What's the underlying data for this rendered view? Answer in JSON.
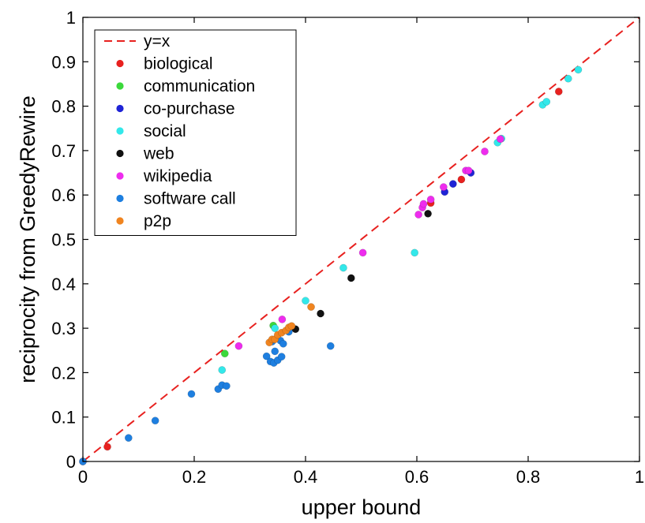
{
  "chart_data": {
    "type": "scatter",
    "title": "",
    "xlabel": "upper bound",
    "ylabel": "reciprocity from GreedyRewire",
    "xlim": [
      0,
      1
    ],
    "ylim": [
      0,
      1
    ],
    "xticks": [
      "0",
      "0.2",
      "0.4",
      "0.6",
      "0.8",
      "1"
    ],
    "yticks": [
      "0",
      "0.1",
      "0.2",
      "0.3",
      "0.4",
      "0.5",
      "0.6",
      "0.7",
      "0.8",
      "0.9",
      "1"
    ],
    "grid": false,
    "legend_position": "top-left",
    "reference_line": {
      "name": "y=x",
      "color": "#e8211f",
      "style": "dashed"
    },
    "series": [
      {
        "name": "biological",
        "color": "#e8211f",
        "points": [
          [
            0.0,
            0.0
          ],
          [
            0.044,
            0.033
          ],
          [
            0.625,
            0.582
          ],
          [
            0.68,
            0.635
          ],
          [
            0.855,
            0.833
          ]
        ]
      },
      {
        "name": "communication",
        "color": "#3bd93b",
        "points": [
          [
            0.255,
            0.243
          ],
          [
            0.342,
            0.306
          ]
        ]
      },
      {
        "name": "co-purchase",
        "color": "#1f24d6",
        "points": [
          [
            0.65,
            0.607
          ],
          [
            0.665,
            0.625
          ],
          [
            0.697,
            0.65
          ]
        ]
      },
      {
        "name": "social",
        "color": "#33e8ea",
        "points": [
          [
            0.25,
            0.206
          ],
          [
            0.345,
            0.3
          ],
          [
            0.4,
            0.362
          ],
          [
            0.468,
            0.436
          ],
          [
            0.596,
            0.47
          ],
          [
            0.745,
            0.718
          ],
          [
            0.752,
            0.727
          ],
          [
            0.826,
            0.803
          ],
          [
            0.833,
            0.81
          ],
          [
            0.872,
            0.862
          ],
          [
            0.89,
            0.882
          ]
        ]
      },
      {
        "name": "web",
        "color": "#111111",
        "points": [
          [
            0.382,
            0.298
          ],
          [
            0.427,
            0.333
          ],
          [
            0.482,
            0.413
          ],
          [
            0.62,
            0.558
          ]
        ]
      },
      {
        "name": "wikipedia",
        "color": "#ee2cee",
        "points": [
          [
            0.28,
            0.26
          ],
          [
            0.358,
            0.32
          ],
          [
            0.503,
            0.47
          ],
          [
            0.603,
            0.556
          ],
          [
            0.61,
            0.572
          ],
          [
            0.612,
            0.58
          ],
          [
            0.625,
            0.59
          ],
          [
            0.648,
            0.618
          ],
          [
            0.688,
            0.655
          ],
          [
            0.693,
            0.655
          ],
          [
            0.722,
            0.698
          ],
          [
            0.75,
            0.726
          ]
        ]
      },
      {
        "name": "software call",
        "color": "#1e7fe0",
        "points": [
          [
            0.0,
            0.0
          ],
          [
            0.082,
            0.053
          ],
          [
            0.13,
            0.092
          ],
          [
            0.195,
            0.152
          ],
          [
            0.243,
            0.163
          ],
          [
            0.25,
            0.172
          ],
          [
            0.258,
            0.17
          ],
          [
            0.33,
            0.237
          ],
          [
            0.337,
            0.225
          ],
          [
            0.343,
            0.222
          ],
          [
            0.345,
            0.248
          ],
          [
            0.35,
            0.228
          ],
          [
            0.355,
            0.272
          ],
          [
            0.357,
            0.236
          ],
          [
            0.36,
            0.265
          ],
          [
            0.37,
            0.292
          ],
          [
            0.445,
            0.26
          ],
          [
            0.34,
            0.27
          ]
        ]
      },
      {
        "name": "p2p",
        "color": "#f0841f",
        "points": [
          [
            0.335,
            0.268
          ],
          [
            0.34,
            0.275
          ],
          [
            0.345,
            0.275
          ],
          [
            0.35,
            0.285
          ],
          [
            0.357,
            0.29
          ],
          [
            0.365,
            0.295
          ],
          [
            0.37,
            0.302
          ],
          [
            0.375,
            0.305
          ],
          [
            0.41,
            0.348
          ]
        ]
      }
    ]
  }
}
